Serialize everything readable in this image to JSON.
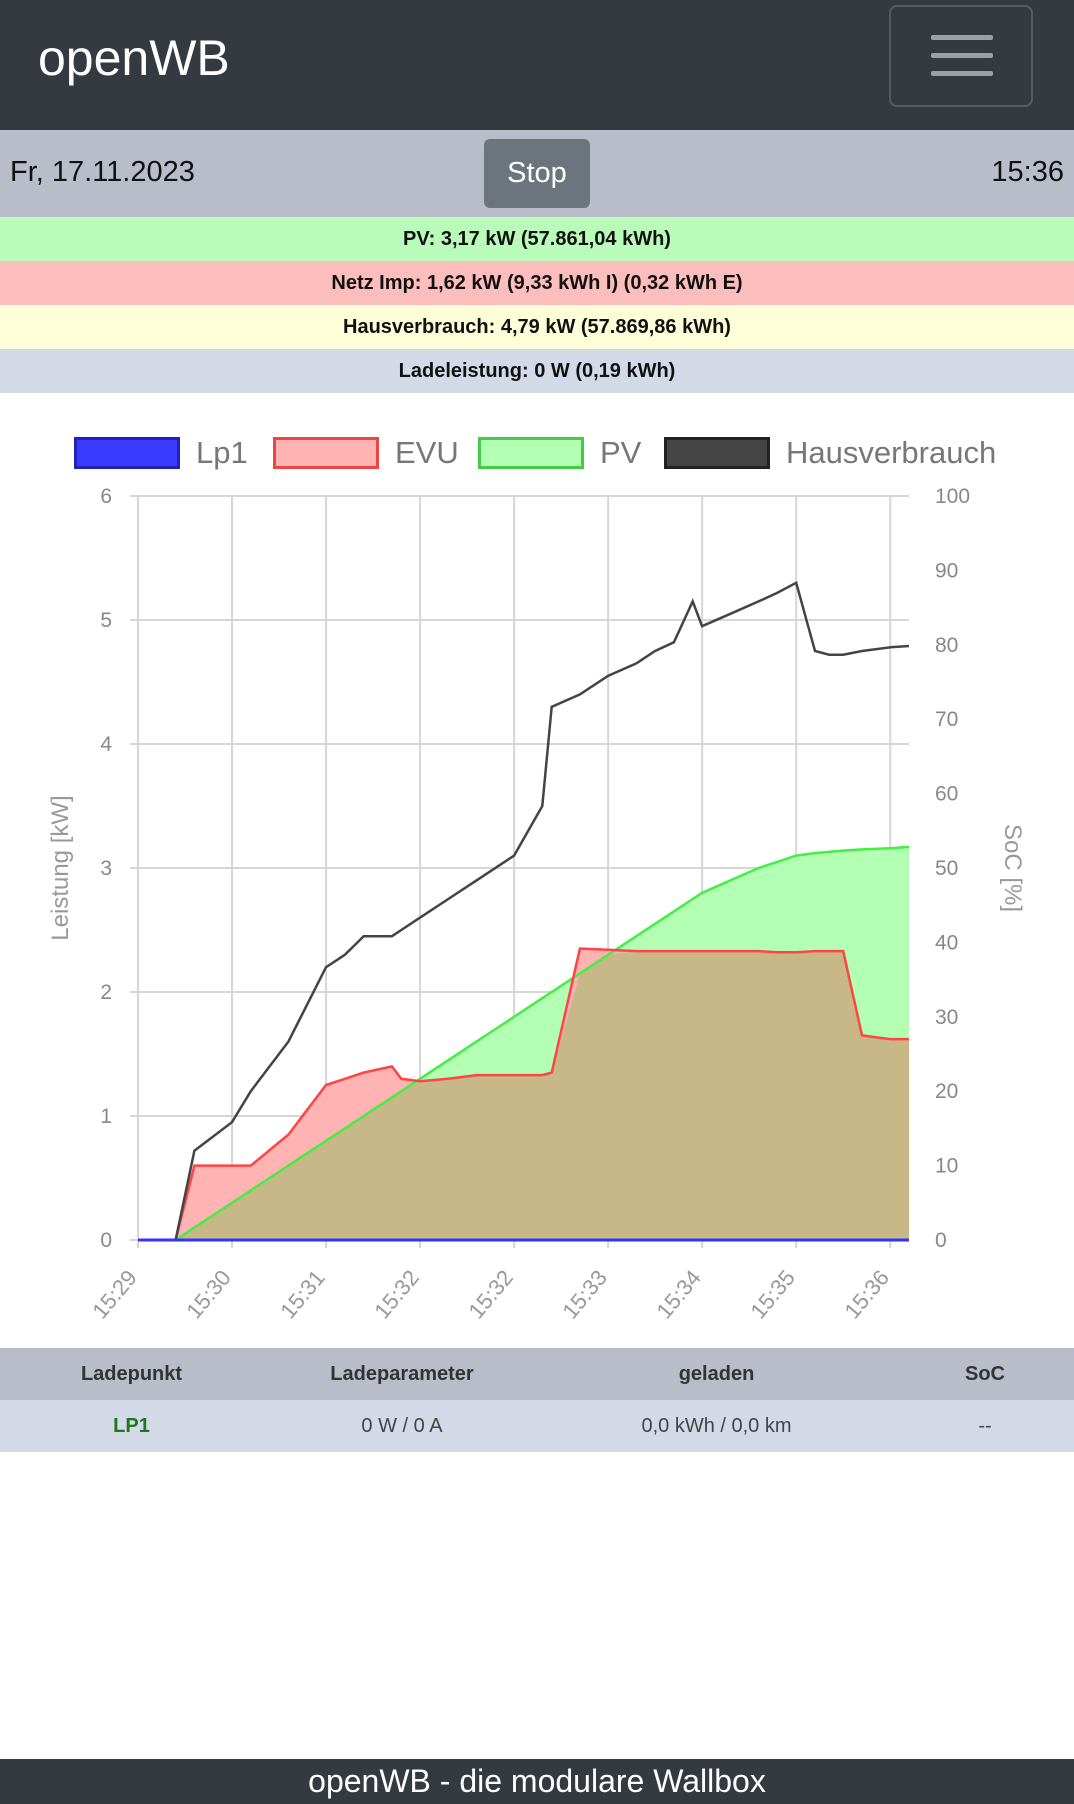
{
  "header": {
    "brand": "openWB",
    "menu_icon": "hamburger-icon"
  },
  "datebar": {
    "date": "Fr, 17.11.2023",
    "stop_label": "Stop",
    "time": "15:36"
  },
  "stats": {
    "pv": "PV: 3,17 kW (57.861,04 kWh)",
    "evu": "Netz Imp: 1,62 kW (9,33 kWh I) (0,32 kWh E)",
    "haus": "Hausverbrauch: 4,79 kW (57.869,86 kWh)",
    "lade": "Ladeleistung: 0 W (0,19 kWh)"
  },
  "colors": {
    "lp1": "#3333ff",
    "evu_line": "#ff4444",
    "evu_fill": "#ffb3b3",
    "pv_line": "#44ee44",
    "pv_fill": "#b3ffb3",
    "overlap_fill": "#c9b887",
    "haus": "#444444"
  },
  "chart_data": {
    "type": "area",
    "ylabel": "Leistung [kW]",
    "y2label": "SoC [%]",
    "ylim": [
      0,
      6
    ],
    "y2lim": [
      0,
      100
    ],
    "yticks": [
      "0",
      "1",
      "2",
      "3",
      "4",
      "5",
      "6"
    ],
    "y2ticks": [
      "0",
      "10",
      "20",
      "30",
      "40",
      "50",
      "60",
      "70",
      "80",
      "90",
      "100"
    ],
    "xticks": [
      "15:29",
      "15:30",
      "15:31",
      "15:32",
      "15:32",
      "15:33",
      "15:34",
      "15:35",
      "15:36"
    ],
    "grid": true,
    "legend_position": "top",
    "legend": [
      "Lp1",
      "EVU",
      "PV",
      "Hausverbrauch"
    ],
    "x": [
      0,
      0.4,
      0.6,
      1.0,
      1.2,
      1.6,
      2.0,
      2.2,
      2.4,
      2.7,
      2.8,
      3.0,
      3.3,
      3.6,
      3.9,
      4.0,
      4.3,
      4.4,
      4.7,
      5.0,
      5.3,
      5.5,
      5.7,
      5.9,
      6.0,
      6.3,
      6.6,
      6.8,
      7.0,
      7.2,
      7.35,
      7.5,
      7.7,
      8.0,
      8.2
    ],
    "series": [
      {
        "name": "Lp1",
        "values": [
          0,
          0,
          0,
          0,
          0,
          0,
          0,
          0,
          0,
          0,
          0,
          0,
          0,
          0,
          0,
          0,
          0,
          0,
          0,
          0,
          0,
          0,
          0,
          0,
          0,
          0,
          0,
          0,
          0,
          0,
          0,
          0,
          0,
          0,
          0
        ]
      },
      {
        "name": "EVU",
        "values": [
          0,
          0,
          0.6,
          0.6,
          0.6,
          0.85,
          1.25,
          1.3,
          1.35,
          1.4,
          1.3,
          1.28,
          1.3,
          1.33,
          1.33,
          1.33,
          1.33,
          1.35,
          2.35,
          2.34,
          2.33,
          2.33,
          2.33,
          2.33,
          2.33,
          2.33,
          2.33,
          2.32,
          2.32,
          2.33,
          2.33,
          2.33,
          1.65,
          1.62,
          1.62
        ]
      },
      {
        "name": "PV",
        "values": [
          0,
          0,
          0.1,
          0.3,
          0.4,
          0.6,
          0.8,
          0.9,
          1.0,
          1.15,
          1.2,
          1.3,
          1.45,
          1.6,
          1.75,
          1.8,
          1.95,
          2.0,
          2.15,
          2.3,
          2.45,
          2.55,
          2.65,
          2.75,
          2.8,
          2.9,
          3.0,
          3.05,
          3.1,
          3.12,
          3.13,
          3.14,
          3.15,
          3.16,
          3.17
        ]
      },
      {
        "name": "Hausverbrauch",
        "values": [
          0,
          0,
          0.72,
          0.95,
          1.2,
          1.6,
          2.2,
          2.3,
          2.45,
          2.45,
          2.5,
          2.6,
          2.75,
          2.9,
          3.05,
          3.1,
          3.5,
          4.3,
          4.4,
          4.55,
          4.65,
          4.75,
          4.82,
          5.15,
          4.95,
          5.05,
          5.15,
          5.22,
          5.3,
          4.75,
          4.72,
          4.72,
          4.75,
          4.78,
          4.79
        ]
      }
    ]
  },
  "table": {
    "headers": [
      "Ladepunkt",
      "Ladeparameter",
      "geladen",
      "SoC"
    ],
    "rows": [
      {
        "name": "LP1",
        "param": "0 W / 0 A",
        "charged": "0,0 kWh / 0,0 km",
        "soc": "--"
      }
    ]
  },
  "footer": {
    "text": "openWB - die modulare Wallbox"
  }
}
